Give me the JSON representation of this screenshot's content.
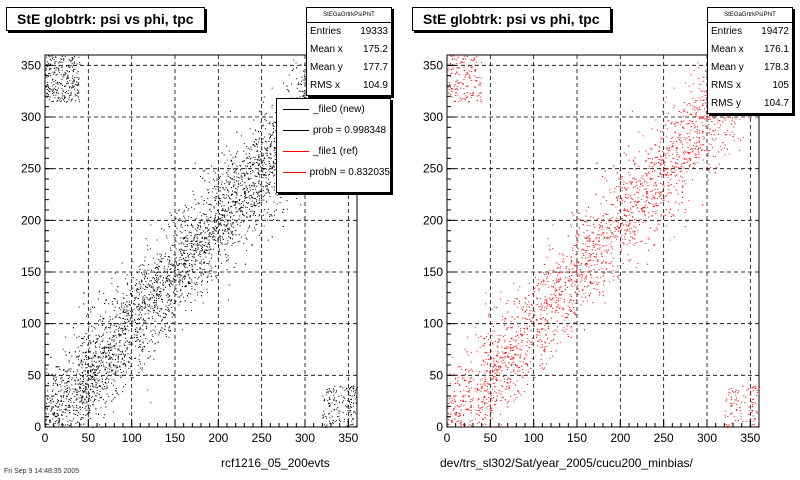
{
  "chart_data": [
    {
      "type": "scatter",
      "title": "StE globtrk: psi vs phi, tpc",
      "xlabel": "rcf1216_05_200evts",
      "ylabel": "",
      "xlim": [
        0,
        360
      ],
      "ylim": [
        0,
        360
      ],
      "xticks": [
        0,
        50,
        100,
        150,
        200,
        250,
        300,
        350
      ],
      "yticks": [
        0,
        50,
        100,
        150,
        200,
        250,
        300,
        350
      ],
      "grid": true,
      "marker_color": "#000000",
      "stats_box": {
        "name": "StEGaGrtrkPsiPhiT",
        "rows": [
          {
            "label": "Entries",
            "value": "19333"
          },
          {
            "label": "Mean x",
            "value": "175.2"
          },
          {
            "label": "Mean y",
            "value": "177.7"
          },
          {
            "label": "RMS x",
            "value": "104.9"
          }
        ]
      },
      "legend": {
        "position": "top-right",
        "entries": [
          {
            "label": "_file0 (new)",
            "color": "#000000"
          },
          {
            "label": "prob = 0.998348",
            "color": "#000000"
          },
          {
            "label": "_file1 (ref)",
            "color": "#ff0000"
          },
          {
            "label": "probN = 0.832035",
            "color": "#ff0000"
          }
        ]
      },
      "series": [
        {
          "entries": 19333,
          "distribution": "diagonal band y ≈ x with wrap-around corners",
          "points": [
            [
              10,
              12
            ],
            [
              25,
              30
            ],
            [
              40,
              38
            ],
            [
              55,
              60
            ],
            [
              70,
              68
            ],
            [
              85,
              90
            ],
            [
              100,
              98
            ],
            [
              115,
              120
            ],
            [
              130,
              128
            ],
            [
              145,
              150
            ],
            [
              160,
              158
            ],
            [
              175,
              180
            ],
            [
              190,
              188
            ],
            [
              205,
              210
            ],
            [
              220,
              218
            ],
            [
              235,
              240
            ],
            [
              250,
              248
            ],
            [
              265,
              270
            ],
            [
              280,
              278
            ],
            [
              295,
              300
            ],
            [
              310,
              308
            ],
            [
              330,
              330
            ],
            [
              350,
              352
            ],
            [
              5,
              350
            ],
            [
              355,
              8
            ]
          ]
        }
      ]
    },
    {
      "type": "scatter",
      "title": "StE globtrk: psi vs phi, tpc",
      "xlabel": "dev/trs_sl302/Sat/year_2005/cucu200_minbias/",
      "ylabel": "",
      "xlim": [
        0,
        360
      ],
      "ylim": [
        0,
        360
      ],
      "xticks": [
        0,
        50,
        100,
        150,
        200,
        250,
        300,
        350
      ],
      "yticks": [
        0,
        50,
        100,
        150,
        200,
        250,
        300,
        350
      ],
      "grid": true,
      "marker_color": "#ff0000",
      "stats_box": {
        "name": "StEGaGrtrkPsiPhiT",
        "rows": [
          {
            "label": "Entries",
            "value": "19472"
          },
          {
            "label": "Mean x",
            "value": "176.1"
          },
          {
            "label": "Mean y",
            "value": "178.3"
          },
          {
            "label": "RMS x",
            "value": "105"
          },
          {
            "label": "RMS y",
            "value": "104.7"
          }
        ]
      },
      "series": [
        {
          "entries": 19472,
          "distribution": "diagonal band y ≈ x with wrap-around corners",
          "points": [
            [
              10,
              12
            ],
            [
              25,
              30
            ],
            [
              40,
              38
            ],
            [
              55,
              60
            ],
            [
              70,
              68
            ],
            [
              85,
              90
            ],
            [
              100,
              98
            ],
            [
              115,
              120
            ],
            [
              130,
              128
            ],
            [
              145,
              150
            ],
            [
              160,
              158
            ],
            [
              175,
              180
            ],
            [
              190,
              188
            ],
            [
              205,
              210
            ],
            [
              220,
              218
            ],
            [
              235,
              240
            ],
            [
              250,
              248
            ],
            [
              265,
              270
            ],
            [
              280,
              278
            ],
            [
              295,
              300
            ],
            [
              310,
              308
            ],
            [
              330,
              330
            ],
            [
              350,
              352
            ],
            [
              5,
              350
            ],
            [
              355,
              8
            ]
          ]
        }
      ]
    }
  ],
  "footer_text": "Fri Sep 9 14:48:35 2005"
}
